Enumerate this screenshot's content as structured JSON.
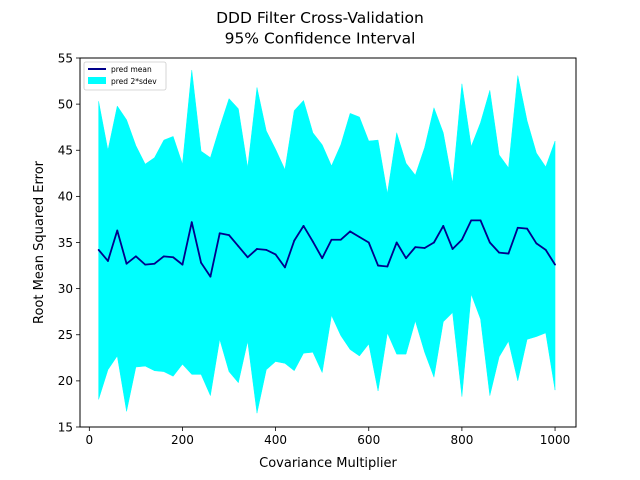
{
  "chart_data": {
    "type": "area",
    "title": "DDD Filter Cross-Validation",
    "subtitle": "95% Confidence Interval",
    "xlabel": "Covariance Multiplier",
    "ylabel": "Root Mean Squared Error",
    "xlim": [
      -20,
      1045
    ],
    "ylim": [
      15,
      55
    ],
    "xticks": [
      0,
      200,
      400,
      600,
      800,
      1000
    ],
    "yticks": [
      15,
      20,
      25,
      30,
      35,
      40,
      45,
      50,
      55
    ],
    "grid": false,
    "legend_position": "top-left",
    "x": [
      20,
      40,
      60,
      80,
      100,
      120,
      140,
      160,
      180,
      200,
      220,
      240,
      260,
      280,
      300,
      320,
      340,
      360,
      380,
      400,
      420,
      440,
      460,
      480,
      500,
      520,
      540,
      560,
      580,
      600,
      620,
      640,
      660,
      680,
      700,
      720,
      740,
      760,
      780,
      800,
      820,
      840,
      860,
      880,
      900,
      920,
      940,
      960,
      980,
      1000
    ],
    "series": [
      {
        "name": "pred mean",
        "type": "line",
        "color": "#00008b",
        "values": [
          34.2,
          33.0,
          36.3,
          32.7,
          33.5,
          32.6,
          32.7,
          33.5,
          33.4,
          32.6,
          37.2,
          32.8,
          31.3,
          36.0,
          35.8,
          34.6,
          33.4,
          34.3,
          34.2,
          33.7,
          32.3,
          35.2,
          36.8,
          35.1,
          33.3,
          35.3,
          35.3,
          36.2,
          35.6,
          35.0,
          32.5,
          32.4,
          35.0,
          33.3,
          34.5,
          34.4,
          35.0,
          36.8,
          34.3,
          35.3,
          37.4,
          37.4,
          35.0,
          33.9,
          33.8,
          36.6,
          36.5,
          34.9,
          34.2,
          32.6
        ]
      },
      {
        "name": "pred 2*sdev",
        "type": "band",
        "color": "#00ffff",
        "upper": [
          50.3,
          45.0,
          49.8,
          48.3,
          45.5,
          43.5,
          44.2,
          46.1,
          46.5,
          43.5,
          53.7,
          44.9,
          44.2,
          47.5,
          50.6,
          49.5,
          43.1,
          51.8,
          47.1,
          45.1,
          42.9,
          49.3,
          50.4,
          46.9,
          45.6,
          43.3,
          45.6,
          49.0,
          48.6,
          46.0,
          46.1,
          40.3,
          46.9,
          43.6,
          42.3,
          45.3,
          49.6,
          46.9,
          41.4,
          52.2,
          45.4,
          48.0,
          51.5,
          44.5,
          43.1,
          53.1,
          48.2,
          44.7,
          43.2,
          46.0
        ],
        "lower": [
          18.0,
          21.2,
          22.7,
          16.7,
          21.5,
          21.6,
          21.1,
          21.0,
          20.5,
          21.8,
          20.7,
          20.7,
          18.4,
          24.5,
          21.0,
          19.8,
          24.3,
          16.5,
          21.2,
          22.1,
          21.9,
          21.1,
          23.0,
          23.1,
          20.9,
          27.1,
          24.9,
          23.4,
          22.7,
          24.0,
          18.9,
          25.2,
          22.9,
          22.9,
          26.5,
          23.1,
          20.4,
          26.4,
          27.4,
          18.3,
          29.4,
          26.7,
          18.4,
          22.6,
          24.3,
          20.0,
          24.5,
          24.8,
          25.2,
          19.0
        ]
      }
    ]
  }
}
